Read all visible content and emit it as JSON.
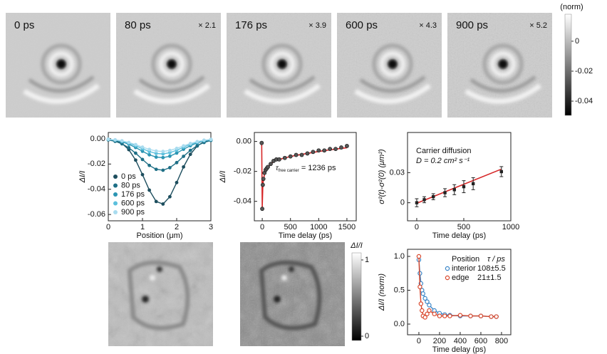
{
  "top_row": [
    {
      "label": "0 ps"
    },
    {
      "label": "80 ps",
      "scale": "× 2.1"
    },
    {
      "label": "176 ps",
      "scale": "× 3.9"
    },
    {
      "label": "600 ps",
      "scale": "× 4.3"
    },
    {
      "label": "900 ps",
      "scale": "× 5.2"
    }
  ],
  "top_colorbar": {
    "title": "(norm)",
    "lim": [
      0.018,
      -0.0495
    ],
    "ticks": [
      0,
      -0.02,
      -0.04
    ]
  },
  "bottom_colorbar": {
    "title": "ΔI/I",
    "lim": [
      1.093,
      -0.056
    ],
    "ticks": [
      1,
      0
    ]
  },
  "chart_data": [
    {
      "type": "line",
      "xlabel": "Position (μm)",
      "ylabel": "ΔI/I",
      "xlim": [
        0,
        3
      ],
      "xticks": [
        0,
        1,
        2,
        3
      ],
      "ylim": [
        -0.065,
        0.005
      ],
      "yticks": [
        -0.06,
        -0.04,
        -0.02,
        {
          "value": 0,
          "label": "0.00"
        }
      ],
      "legend": "lower left",
      "x": [
        0,
        0.2,
        0.4,
        0.6,
        0.8,
        1.0,
        1.2,
        1.4,
        1.6,
        1.8,
        2.0,
        2.2,
        2.4,
        2.6,
        2.8,
        3.0
      ],
      "series": [
        {
          "name": "0 ps",
          "color": "#1d4e5e",
          "values": [
            -0.0004,
            -0.0014,
            -0.0037,
            -0.0086,
            -0.0169,
            -0.0284,
            -0.0407,
            -0.0497,
            -0.0517,
            -0.0459,
            -0.0347,
            -0.0223,
            -0.0123,
            -0.0057,
            -0.0023,
            -0.0008
          ]
        },
        {
          "name": "80 ps",
          "color": "#1e6f86",
          "values": [
            -0.0009,
            -0.002,
            -0.004,
            -0.0071,
            -0.0114,
            -0.0164,
            -0.0211,
            -0.0242,
            -0.0249,
            -0.0229,
            -0.0189,
            -0.0139,
            -0.0092,
            -0.0054,
            -0.0029,
            -0.0013
          ]
        },
        {
          "name": "176 ps",
          "color": "#2b95b3",
          "values": [
            -0.0005,
            -0.0012,
            -0.0024,
            -0.0043,
            -0.0069,
            -0.0099,
            -0.0127,
            -0.0145,
            -0.0149,
            -0.0138,
            -0.0113,
            -0.0083,
            -0.0055,
            -0.0032,
            -0.0017,
            -0.0008
          ]
        },
        {
          "name": "600 ps",
          "color": "#5cc0dd",
          "values": [
            -0.0004,
            -0.001,
            -0.0019,
            -0.0034,
            -0.0055,
            -0.0079,
            -0.0101,
            -0.0116,
            -0.012,
            -0.011,
            -0.0091,
            -0.0067,
            -0.0044,
            -0.0026,
            -0.0014,
            -0.0006
          ]
        },
        {
          "name": "900 ps",
          "color": "#a9dcef",
          "values": [
            -0.0004,
            -0.0008,
            -0.0016,
            -0.0029,
            -0.0046,
            -0.0066,
            -0.0084,
            -0.0097,
            -0.01,
            -0.0092,
            -0.0076,
            -0.0056,
            -0.0037,
            -0.0022,
            -0.0011,
            -0.0005
          ]
        }
      ]
    },
    {
      "type": "scatter",
      "xlabel": "Time delay (ps)",
      "ylabel": "ΔI/I",
      "xlim": [
        -140,
        1665
      ],
      "xticks": [
        0,
        500,
        1000,
        1500
      ],
      "ylim": [
        -0.053,
        0.006
      ],
      "yticks": [
        -0.04,
        -0.02,
        {
          "value": 0,
          "label": "0.00"
        }
      ],
      "annotation": {
        "symbol": "τ",
        "subscript": "free carrier",
        "text": " = 1236 ps"
      },
      "color": "#555555",
      "fit_color": "#d62728",
      "x": [
        -10,
        0,
        10,
        20,
        40,
        60,
        80,
        100,
        150,
        200,
        250,
        300,
        400,
        500,
        600,
        700,
        800,
        900,
        1000,
        1100,
        1200,
        1300,
        1400,
        1500
      ],
      "values": [
        -0.001,
        -0.045,
        -0.029,
        -0.025,
        -0.021,
        -0.019,
        -0.018,
        -0.017,
        -0.015,
        -0.013,
        -0.012,
        -0.012,
        -0.011,
        -0.01,
        -0.009,
        -0.009,
        -0.008,
        -0.007,
        -0.006,
        -0.006,
        -0.005,
        -0.005,
        -0.004,
        -0.003
      ],
      "fit_values": [
        0,
        -0.044,
        -0.03,
        -0.026,
        -0.022,
        -0.02,
        -0.018,
        -0.017,
        -0.015,
        -0.0135,
        -0.0125,
        -0.012,
        -0.011,
        -0.01,
        -0.0093,
        -0.0086,
        -0.008,
        -0.0073,
        -0.0067,
        -0.0061,
        -0.0056,
        -0.0051,
        -0.0046,
        -0.0042
      ]
    },
    {
      "type": "errorbar",
      "xlabel": "Time delay (ps)",
      "ylabel": "σ²(t)-σ²(0) (μm²)",
      "xlim": [
        -98,
        1000
      ],
      "xticks": [
        0,
        500,
        1000
      ],
      "ylim": [
        -0.018,
        0.07
      ],
      "yticks": [
        0,
        0.03
      ],
      "annotation": [
        "Carrier diffusion",
        "D = 0.2 cm² s⁻¹"
      ],
      "color": "#222222",
      "fit_color": "#d62728",
      "x": [
        0,
        80,
        176,
        300,
        400,
        500,
        600,
        900
      ],
      "values": [
        0,
        0.003,
        0.006,
        0.01,
        0.013,
        0.016,
        0.019,
        0.031
      ],
      "errors": [
        0.004,
        0.003,
        0.003,
        0.004,
        0.005,
        0.006,
        0.006,
        0.005
      ],
      "fit_x": [
        0,
        900
      ],
      "fit_values": [
        -0.0005,
        0.0335
      ]
    },
    {
      "type": "line",
      "xlabel": "Time delay (ps)",
      "ylabel": "ΔI/I (norm)",
      "xlim": [
        -110,
        890
      ],
      "xticks": [
        0,
        200,
        400,
        600,
        800
      ],
      "ylim": [
        -0.158,
        1.105
      ],
      "yticks": [
        {
          "value": 0,
          "label": "0.0"
        },
        {
          "value": 0.5,
          "label": "0.5"
        },
        {
          "value": 1,
          "label": "1.0"
        }
      ],
      "legend": "upper right",
      "legend_title": [
        "Position",
        "τ / ps"
      ],
      "open_markers": true,
      "x": [
        0,
        10,
        20,
        30,
        40,
        60,
        80,
        100,
        150,
        200,
        250,
        300,
        400,
        500,
        600,
        700,
        750
      ],
      "series": [
        {
          "name": "interior",
          "tau_label": "108±5.5",
          "color": "#3a86c8",
          "values": [
            0.95,
            0.75,
            0.6,
            0.5,
            0.45,
            0.38,
            0.33,
            0.28,
            0.2,
            0.16,
            0.14,
            0.13,
            0.12,
            0.12,
            0.12,
            0.11,
            0.11
          ]
        },
        {
          "name": "edge",
          "tau_label": "21±1.5",
          "color": "#d9472b",
          "values": [
            1,
            0.55,
            0.3,
            0.2,
            0.12,
            0.1,
            0.15,
            0.2,
            0.15,
            0.12,
            0.12,
            0.12,
            0.13,
            0.12,
            0.12,
            0.11,
            0.11
          ]
        }
      ]
    }
  ]
}
